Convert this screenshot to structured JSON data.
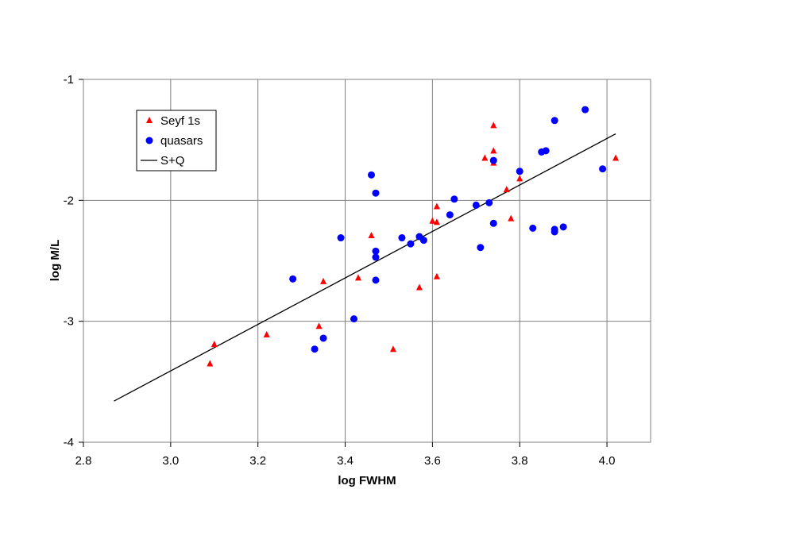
{
  "chart_data": {
    "type": "scatter",
    "title": "",
    "xlabel": "log FWHM",
    "ylabel": "log M/L",
    "xlim": [
      2.8,
      4.1
    ],
    "ylim": [
      -4,
      -1
    ],
    "x_ticks": [
      "2.8",
      "3.0",
      "3.2",
      "3.4",
      "3.6",
      "3.8",
      "4.0"
    ],
    "y_ticks": [
      "-1",
      "-2",
      "-3",
      "-4"
    ],
    "grid": true,
    "legend_position": "top-left",
    "series": [
      {
        "name": "Seyf 1s",
        "marker": "triangle",
        "color": "#ff0000",
        "points": [
          [
            3.09,
            -3.35
          ],
          [
            3.1,
            -3.19
          ],
          [
            3.22,
            -3.11
          ],
          [
            3.34,
            -3.04
          ],
          [
            3.35,
            -2.67
          ],
          [
            3.43,
            -2.64
          ],
          [
            3.46,
            -2.29
          ],
          [
            3.51,
            -3.23
          ],
          [
            3.57,
            -2.72
          ],
          [
            3.6,
            -2.17
          ],
          [
            3.61,
            -2.05
          ],
          [
            3.61,
            -2.18
          ],
          [
            3.61,
            -2.63
          ],
          [
            3.72,
            -1.65
          ],
          [
            3.74,
            -1.38
          ],
          [
            3.74,
            -1.59
          ],
          [
            3.74,
            -1.69
          ],
          [
            3.77,
            -1.91
          ],
          [
            3.78,
            -2.15
          ],
          [
            3.8,
            -1.82
          ],
          [
            4.02,
            -1.65
          ]
        ]
      },
      {
        "name": "quasars",
        "marker": "circle",
        "color": "#0000ff",
        "points": [
          [
            3.28,
            -2.65
          ],
          [
            3.33,
            -3.23
          ],
          [
            3.35,
            -3.14
          ],
          [
            3.39,
            -2.31
          ],
          [
            3.42,
            -2.98
          ],
          [
            3.46,
            -1.79
          ],
          [
            3.47,
            -1.94
          ],
          [
            3.47,
            -2.42
          ],
          [
            3.47,
            -2.47
          ],
          [
            3.47,
            -2.66
          ],
          [
            3.53,
            -2.31
          ],
          [
            3.55,
            -2.36
          ],
          [
            3.57,
            -2.3
          ],
          [
            3.58,
            -2.33
          ],
          [
            3.64,
            -2.12
          ],
          [
            3.65,
            -1.99
          ],
          [
            3.7,
            -2.04
          ],
          [
            3.71,
            -2.39
          ],
          [
            3.73,
            -2.02
          ],
          [
            3.74,
            -1.67
          ],
          [
            3.74,
            -2.19
          ],
          [
            3.8,
            -1.76
          ],
          [
            3.83,
            -2.23
          ],
          [
            3.85,
            -1.6
          ],
          [
            3.86,
            -1.59
          ],
          [
            3.88,
            -1.34
          ],
          [
            3.88,
            -2.26
          ],
          [
            3.88,
            -2.24
          ],
          [
            3.9,
            -2.22
          ],
          [
            3.95,
            -1.25
          ],
          [
            3.99,
            -1.74
          ]
        ]
      },
      {
        "name": "S+Q",
        "marker": "line",
        "color": "#000000",
        "points": [
          [
            2.87,
            -3.66
          ],
          [
            4.02,
            -1.45
          ]
        ]
      }
    ]
  }
}
